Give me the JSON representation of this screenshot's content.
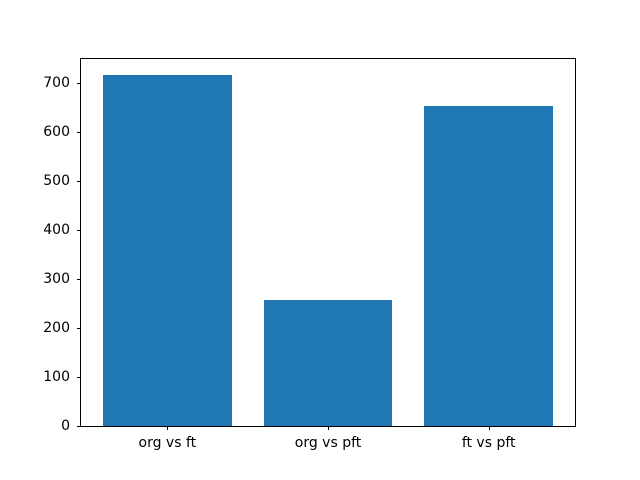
{
  "chart_data": {
    "type": "bar",
    "title": "",
    "categories": [
      "org vs ft",
      "org vs pft",
      "ft vs pft"
    ],
    "values": [
      717,
      257,
      655
    ],
    "xlabel": "",
    "ylabel": "",
    "ylim": [
      0,
      750
    ],
    "yticks": [
      0,
      100,
      200,
      300,
      400,
      500,
      600,
      700
    ],
    "bar_color": "#1f77b4",
    "grid": false,
    "legend": "none",
    "background": "#ffffff"
  }
}
